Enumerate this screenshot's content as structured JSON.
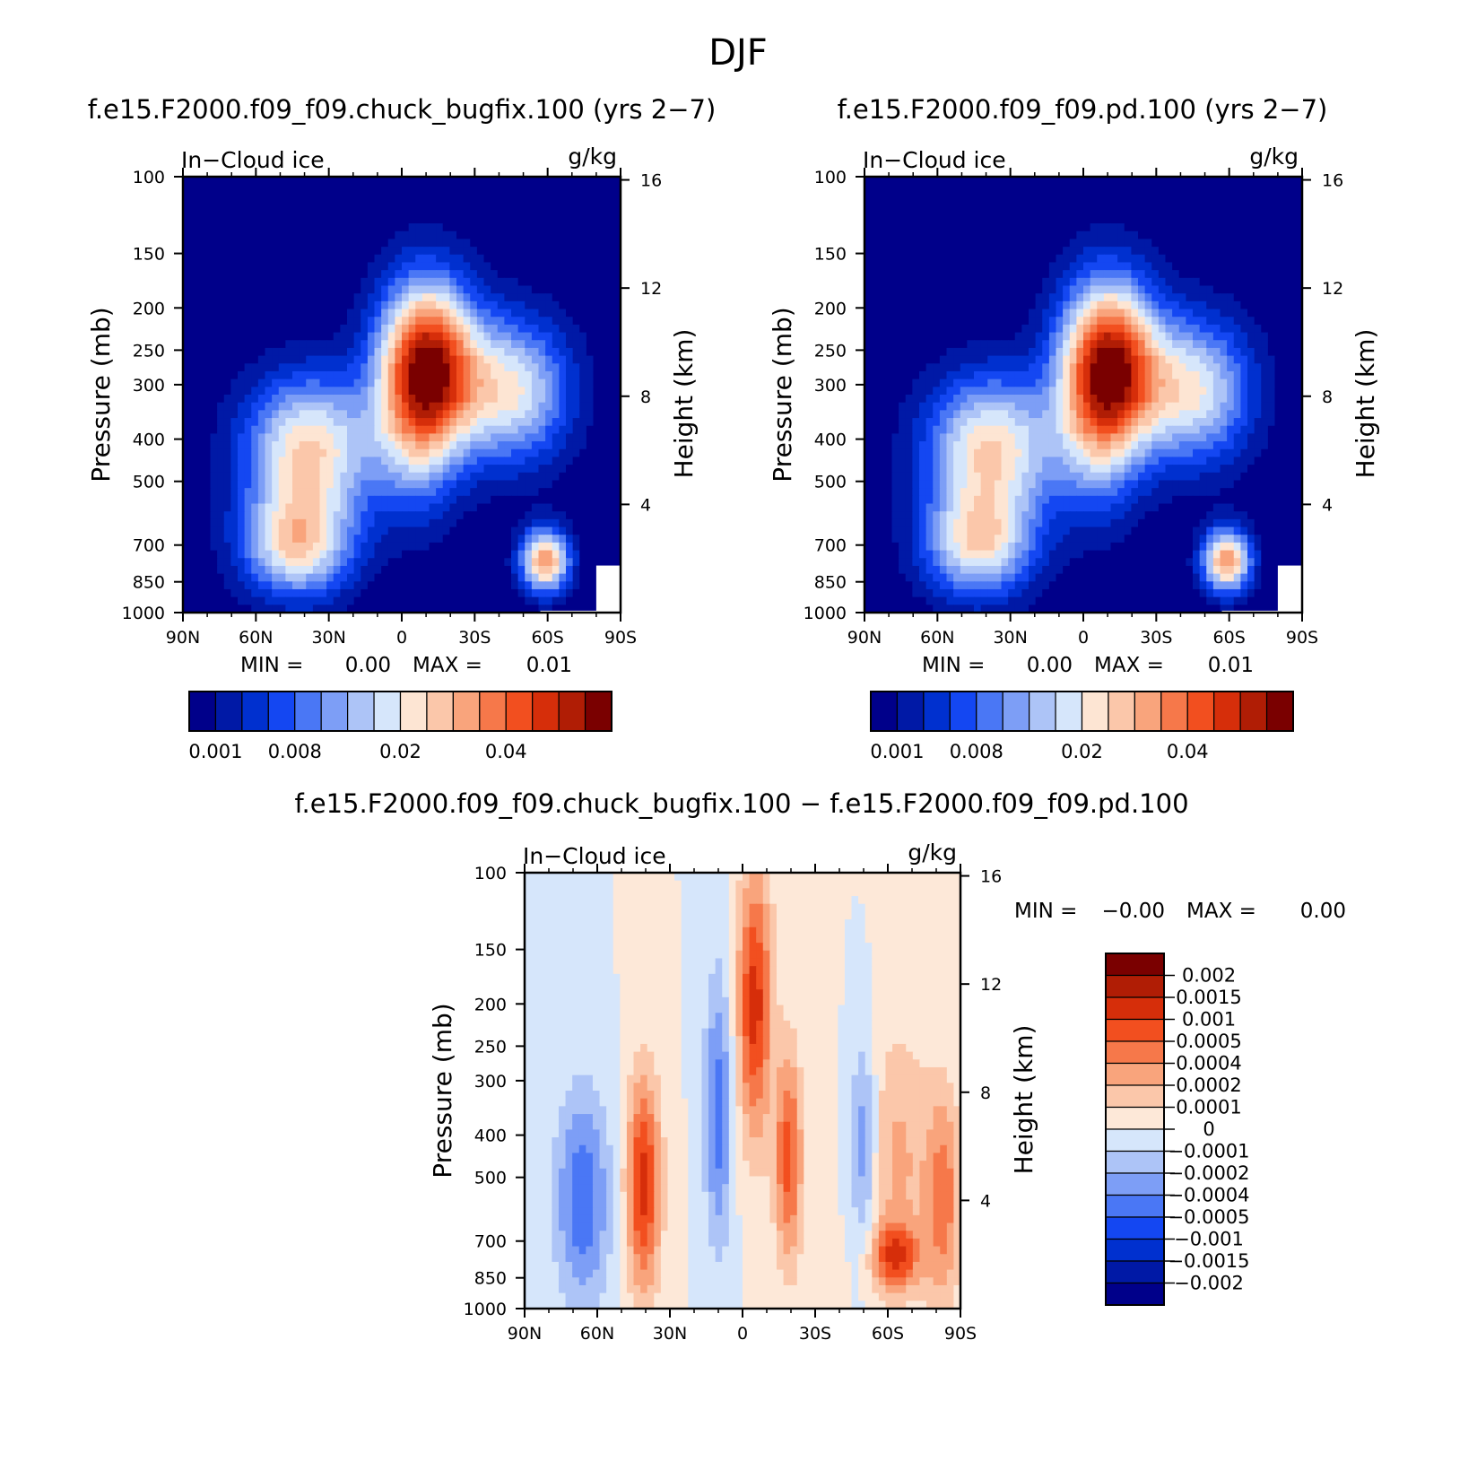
{
  "figure": {
    "title": "DJF"
  },
  "colors": {
    "seq": [
      "#00008a",
      "#0019a6",
      "#0030cf",
      "#1447f2",
      "#4a77f5",
      "#7d9ef6",
      "#adc4f7",
      "#d6e6fb",
      "#fde5d3",
      "#fbc7aa",
      "#f9a47c",
      "#f6784a",
      "#f24f1f",
      "#d62e0a",
      "#b01d05",
      "#7a0000"
    ],
    "diff": [
      "#00008a",
      "#0019a6",
      "#0030cf",
      "#1447f2",
      "#4a77f5",
      "#7d9ef6",
      "#adc4f7",
      "#d6e6fb",
      "#fde8d8",
      "#fbc7aa",
      "#f9a47c",
      "#f6784a",
      "#f24f1f",
      "#d62e0a",
      "#b01d05",
      "#7a0000"
    ]
  },
  "chart_data": [
    {
      "type": "heatmap",
      "title": "f.e15.F2000.f09_f09.chuck_bugfix.100 (yrs 2−7)",
      "variable": "In−Cloud ice",
      "units": "g/kg",
      "ylabel": "Pressure (mb)",
      "ylabel_right": "Height (km)",
      "x_ticks": [
        "90N",
        "60N",
        "30N",
        "0",
        "30S",
        "60S",
        "90S"
      ],
      "x_values": [
        90,
        60,
        30,
        0,
        -30,
        -60,
        -90
      ],
      "y_ticks": [
        "100",
        "150",
        "200",
        "250",
        "300",
        "400",
        "500",
        "700",
        "850",
        "1000"
      ],
      "y_values": [
        100,
        150,
        200,
        250,
        300,
        400,
        500,
        700,
        850,
        1000
      ],
      "height_ticks": [
        "16",
        "12",
        "8",
        "4"
      ],
      "height_values": [
        16,
        12,
        8,
        4
      ],
      "stats": {
        "min_label": "MIN =",
        "min_value": "0.00",
        "max_label": "MAX =",
        "max_value": "0.01"
      },
      "colorbar_labels": [
        "0.001",
        "0.008",
        "0.02",
        "0.04"
      ],
      "colorbar_label_slots": [
        1,
        4,
        8,
        12
      ],
      "peaks": [
        {
          "lat": -10,
          "p": 270,
          "amp": 14.5,
          "sx": 14,
          "sy": 0.32
        },
        {
          "lat": -6,
          "p": 420,
          "amp": 3.5,
          "sx": 12,
          "sy": 0.3
        },
        {
          "lat": 38,
          "p": 420,
          "amp": 9.0,
          "sx": 19,
          "sy": 0.27
        },
        {
          "lat": 43,
          "p": 700,
          "amp": 8.5,
          "sx": 16,
          "sy": 0.2
        },
        {
          "lat": -45,
          "p": 310,
          "amp": 8.0,
          "sx": 17,
          "sy": 0.27
        },
        {
          "lat": -59,
          "p": 760,
          "amp": 11.0,
          "sx": 7,
          "sy": 0.12
        }
      ]
    },
    {
      "type": "heatmap",
      "title": "f.e15.F2000.f09_f09.pd.100 (yrs 2−7)",
      "variable": "In−Cloud ice",
      "units": "g/kg",
      "ylabel": "Pressure (mb)",
      "ylabel_right": "Height (km)",
      "x_ticks": [
        "90N",
        "60N",
        "30N",
        "0",
        "30S",
        "60S",
        "90S"
      ],
      "x_values": [
        90,
        60,
        30,
        0,
        -30,
        -60,
        -90
      ],
      "y_ticks": [
        "100",
        "150",
        "200",
        "250",
        "300",
        "400",
        "500",
        "700",
        "850",
        "1000"
      ],
      "y_values": [
        100,
        150,
        200,
        250,
        300,
        400,
        500,
        700,
        850,
        1000
      ],
      "height_ticks": [
        "16",
        "12",
        "8",
        "4"
      ],
      "height_values": [
        16,
        12,
        8,
        4
      ],
      "stats": {
        "min_label": "MIN =",
        "min_value": "0.00",
        "max_label": "MAX =",
        "max_value": "0.01"
      },
      "colorbar_labels": [
        "0.001",
        "0.008",
        "0.02",
        "0.04"
      ],
      "colorbar_label_slots": [
        1,
        4,
        8,
        12
      ],
      "peaks": [
        {
          "lat": -10,
          "p": 270,
          "amp": 14.5,
          "sx": 14,
          "sy": 0.32
        },
        {
          "lat": -6,
          "p": 420,
          "amp": 3.5,
          "sx": 12,
          "sy": 0.3
        },
        {
          "lat": 38,
          "p": 420,
          "amp": 9.0,
          "sx": 19,
          "sy": 0.27
        },
        {
          "lat": 43,
          "p": 700,
          "amp": 8.0,
          "sx": 16,
          "sy": 0.2
        },
        {
          "lat": -45,
          "p": 310,
          "amp": 8.0,
          "sx": 17,
          "sy": 0.27
        },
        {
          "lat": -59,
          "p": 760,
          "amp": 11.0,
          "sx": 7,
          "sy": 0.12
        }
      ]
    },
    {
      "type": "heatmap",
      "title": "f.e15.F2000.f09_f09.chuck_bugfix.100 − f.e15.F2000.f09_f09.pd.100",
      "variable": "In−Cloud ice",
      "units": "g/kg",
      "ylabel": "Pressure (mb)",
      "ylabel_right": "Height (km)",
      "x_ticks": [
        "90N",
        "60N",
        "30N",
        "0",
        "30S",
        "60S",
        "90S"
      ],
      "x_values": [
        90,
        60,
        30,
        0,
        -30,
        -60,
        -90
      ],
      "y_ticks": [
        "100",
        "150",
        "200",
        "250",
        "300",
        "400",
        "500",
        "700",
        "850",
        "1000"
      ],
      "y_values": [
        100,
        150,
        200,
        250,
        300,
        400,
        500,
        700,
        850,
        1000
      ],
      "height_ticks": [
        "16",
        "12",
        "8",
        "4"
      ],
      "height_values": [
        16,
        12,
        8,
        4
      ],
      "stats": {
        "min_label": "MIN =",
        "min_value": "−0.00",
        "max_label": "MAX =",
        "max_value": "0.00"
      },
      "colorbar_labels": [
        "0.002",
        "0.0015",
        "0.001",
        "0.0005",
        "0.0004",
        "0.0002",
        "0.0001",
        "0",
        "−0.0001",
        "−0.0002",
        "−0.0004",
        "−0.0005",
        "−0.001",
        "−0.0015",
        "−0.002"
      ],
      "peaks": [
        {
          "lat": -5,
          "p": 200,
          "amp": 5.5,
          "sx": 5,
          "sy": 0.5
        },
        {
          "lat": -19,
          "p": 450,
          "amp": 4.5,
          "sx": 4,
          "sy": 0.4
        },
        {
          "lat": 41,
          "p": 520,
          "amp": 5.5,
          "sx": 5,
          "sy": 0.4
        },
        {
          "lat": 10,
          "p": 350,
          "amp": -3.6,
          "sx": 4,
          "sy": 0.5
        },
        {
          "lat": 66,
          "p": 560,
          "amp": -3.8,
          "sx": 8,
          "sy": 0.4
        },
        {
          "lat": -50,
          "p": 420,
          "amp": -3.0,
          "sx": 4,
          "sy": 0.4
        },
        {
          "lat": -63,
          "p": 760,
          "amp": 4.5,
          "sx": 7,
          "sy": 0.12
        },
        {
          "lat": -83,
          "p": 560,
          "amp": 3.5,
          "sx": 5,
          "sy": 0.4
        },
        {
          "lat": -64,
          "p": 460,
          "amp": 2.2,
          "sx": 10,
          "sy": 0.5
        }
      ]
    }
  ]
}
